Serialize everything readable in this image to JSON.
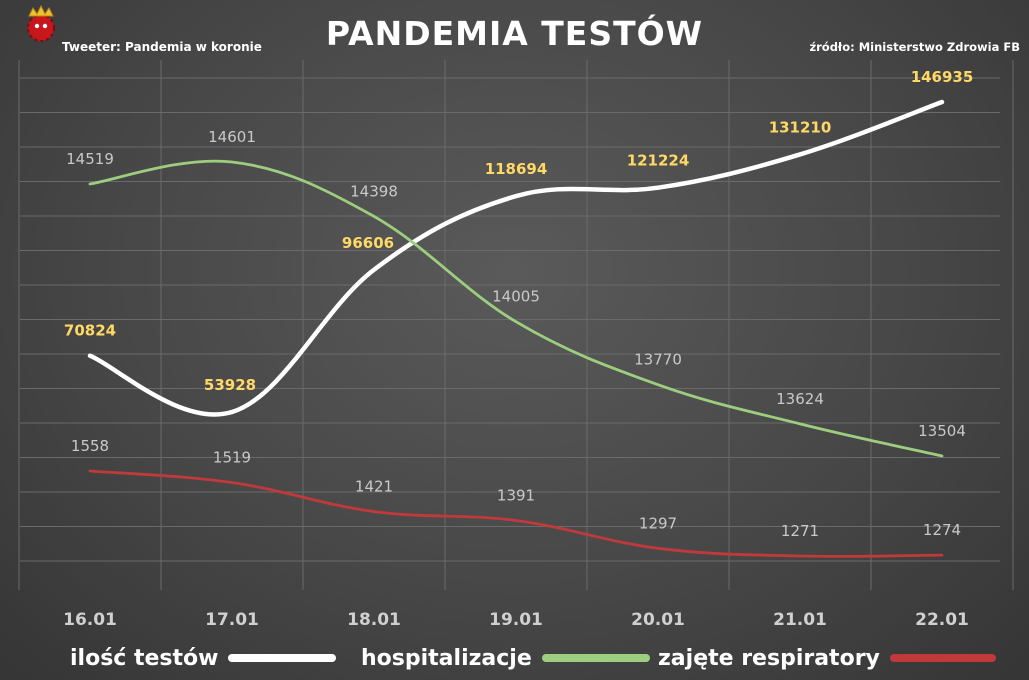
{
  "header": {
    "title": "PANDEMIA TESTÓW",
    "credit": "Tweeter: Pandemia w koronie",
    "source": "źródło: Ministerstwo Zdrowia FB"
  },
  "colors": {
    "tests": "#ffffff",
    "hosp": "#9dcd7f",
    "resp": "#c0393b",
    "tests_label": "#ffd966",
    "other_label": "#c9c9c9",
    "axis_label": "#d0d0d0",
    "grid": "#6a6a6a"
  },
  "legend": [
    {
      "label": "ilość testów",
      "color": "#ffffff"
    },
    {
      "label": "hospitalizacje",
      "color": "#9dcd7f"
    },
    {
      "label": "zajęte respiratory",
      "color": "#c0393b"
    }
  ],
  "chart_data": {
    "type": "line",
    "title": "PANDEMIA TESTÓW",
    "categories": [
      "16.01",
      "17.01",
      "18.01",
      "19.01",
      "20.01",
      "21.01",
      "22.01"
    ],
    "grid": true,
    "legend_position": "bottom",
    "series": [
      {
        "name": "ilość testów",
        "values": [
          70824,
          53928,
          96606,
          118694,
          121224,
          131210,
          146935
        ]
      },
      {
        "name": "hospitalizacje",
        "values": [
          14519,
          14601,
          14398,
          14005,
          13770,
          13624,
          13504
        ]
      },
      {
        "name": "zajęte respiratory",
        "values": [
          1558,
          1519,
          1421,
          1391,
          1297,
          1271,
          1274
        ]
      }
    ]
  }
}
